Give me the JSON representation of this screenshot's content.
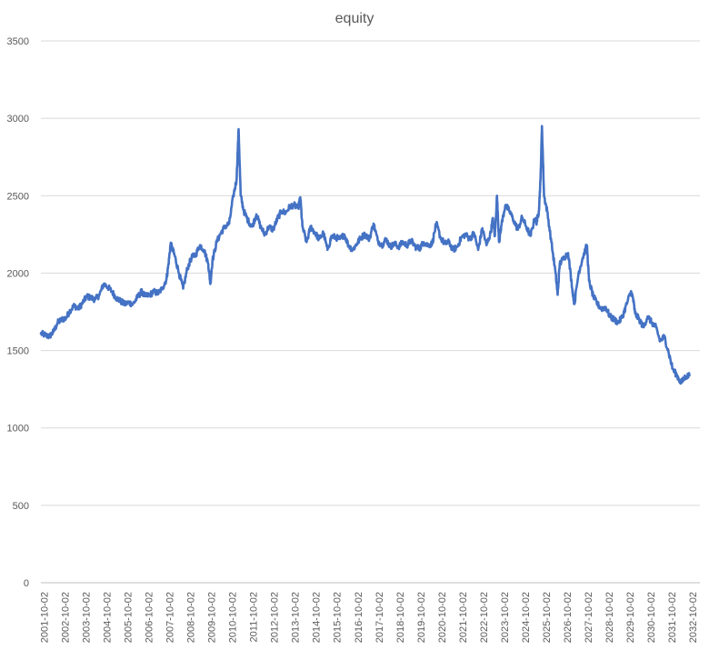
{
  "chart_data": {
    "type": "line",
    "title": "equity",
    "xlabel": "",
    "ylabel": "",
    "ylim": [
      0,
      3500
    ],
    "yticks": [
      0,
      500,
      1000,
      1500,
      2000,
      2500,
      3000,
      3500
    ],
    "grid": true,
    "legend": "none",
    "xlim": [
      2001.6,
      2033.1
    ],
    "xticks": [
      "2001-10-02",
      "2002-10-02",
      "2003-10-02",
      "2004-10-02",
      "2005-10-02",
      "2006-10-02",
      "2007-10-02",
      "2008-10-02",
      "2009-10-02",
      "2010-10-02",
      "2011-10-02",
      "2012-10-02",
      "2013-10-02",
      "2014-10-02",
      "2015-10-02",
      "2016-10-02",
      "2017-10-02",
      "2018-10-02",
      "2019-10-02",
      "2020-10-02",
      "2021-10-02",
      "2022-10-02",
      "2023-10-02",
      "2024-10-02",
      "2025-10-02",
      "2026-10-02",
      "2027-10-02",
      "2028-10-02",
      "2029-10-02",
      "2030-10-02",
      "2031-10-02",
      "2032-10-02"
    ],
    "series": [
      {
        "color": "#4472c4",
        "points": [
          [
            2001.6,
            1610
          ],
          [
            2001.8,
            1600
          ],
          [
            2002.0,
            1590
          ],
          [
            2002.2,
            1620
          ],
          [
            2002.4,
            1680
          ],
          [
            2002.6,
            1700
          ],
          [
            2002.8,
            1710
          ],
          [
            2003.0,
            1760
          ],
          [
            2003.2,
            1790
          ],
          [
            2003.4,
            1770
          ],
          [
            2003.6,
            1810
          ],
          [
            2003.8,
            1850
          ],
          [
            2004.0,
            1840
          ],
          [
            2004.2,
            1830
          ],
          [
            2004.4,
            1860
          ],
          [
            2004.6,
            1930
          ],
          [
            2004.8,
            1910
          ],
          [
            2005.0,
            1880
          ],
          [
            2005.2,
            1840
          ],
          [
            2005.4,
            1820
          ],
          [
            2005.6,
            1800
          ],
          [
            2005.8,
            1810
          ],
          [
            2006.0,
            1800
          ],
          [
            2006.2,
            1840
          ],
          [
            2006.4,
            1880
          ],
          [
            2006.6,
            1850
          ],
          [
            2006.8,
            1860
          ],
          [
            2007.0,
            1880
          ],
          [
            2007.2,
            1870
          ],
          [
            2007.4,
            1900
          ],
          [
            2007.6,
            1960
          ],
          [
            2007.7,
            2060
          ],
          [
            2007.8,
            2190
          ],
          [
            2007.9,
            2150
          ],
          [
            2008.0,
            2110
          ],
          [
            2008.2,
            2000
          ],
          [
            2008.4,
            1900
          ],
          [
            2008.6,
            2030
          ],
          [
            2008.8,
            2100
          ],
          [
            2009.0,
            2120
          ],
          [
            2009.2,
            2180
          ],
          [
            2009.4,
            2150
          ],
          [
            2009.6,
            2060
          ],
          [
            2009.7,
            1930
          ],
          [
            2009.8,
            2080
          ],
          [
            2010.0,
            2200
          ],
          [
            2010.2,
            2260
          ],
          [
            2010.4,
            2300
          ],
          [
            2010.6,
            2320
          ],
          [
            2010.8,
            2500
          ],
          [
            2010.95,
            2600
          ],
          [
            2011.05,
            2930
          ],
          [
            2011.15,
            2500
          ],
          [
            2011.3,
            2400
          ],
          [
            2011.5,
            2340
          ],
          [
            2011.7,
            2300
          ],
          [
            2011.9,
            2380
          ],
          [
            2012.1,
            2300
          ],
          [
            2012.3,
            2250
          ],
          [
            2012.5,
            2300
          ],
          [
            2012.7,
            2280
          ],
          [
            2012.9,
            2350
          ],
          [
            2013.1,
            2400
          ],
          [
            2013.3,
            2390
          ],
          [
            2013.5,
            2430
          ],
          [
            2013.7,
            2440
          ],
          [
            2013.9,
            2420
          ],
          [
            2014.0,
            2490
          ],
          [
            2014.1,
            2300
          ],
          [
            2014.3,
            2200
          ],
          [
            2014.5,
            2300
          ],
          [
            2014.7,
            2260
          ],
          [
            2014.9,
            2220
          ],
          [
            2015.1,
            2260
          ],
          [
            2015.3,
            2150
          ],
          [
            2015.5,
            2240
          ],
          [
            2015.7,
            2230
          ],
          [
            2015.9,
            2220
          ],
          [
            2016.1,
            2250
          ],
          [
            2016.3,
            2180
          ],
          [
            2016.5,
            2150
          ],
          [
            2016.7,
            2190
          ],
          [
            2016.9,
            2230
          ],
          [
            2017.1,
            2250
          ],
          [
            2017.3,
            2220
          ],
          [
            2017.5,
            2320
          ],
          [
            2017.7,
            2210
          ],
          [
            2017.9,
            2180
          ],
          [
            2018.1,
            2220
          ],
          [
            2018.3,
            2170
          ],
          [
            2018.5,
            2190
          ],
          [
            2018.7,
            2170
          ],
          [
            2018.9,
            2200
          ],
          [
            2019.1,
            2180
          ],
          [
            2019.3,
            2210
          ],
          [
            2019.5,
            2170
          ],
          [
            2019.7,
            2160
          ],
          [
            2019.9,
            2200
          ],
          [
            2020.1,
            2180
          ],
          [
            2020.3,
            2190
          ],
          [
            2020.5,
            2320
          ],
          [
            2020.7,
            2230
          ],
          [
            2020.9,
            2190
          ],
          [
            2021.1,
            2200
          ],
          [
            2021.3,
            2150
          ],
          [
            2021.5,
            2170
          ],
          [
            2021.7,
            2230
          ],
          [
            2021.9,
            2250
          ],
          [
            2022.1,
            2220
          ],
          [
            2022.3,
            2260
          ],
          [
            2022.5,
            2150
          ],
          [
            2022.7,
            2290
          ],
          [
            2022.9,
            2180
          ],
          [
            2023.1,
            2260
          ],
          [
            2023.2,
            2350
          ],
          [
            2023.3,
            2240
          ],
          [
            2023.4,
            2500
          ],
          [
            2023.5,
            2200
          ],
          [
            2023.6,
            2300
          ],
          [
            2023.8,
            2440
          ],
          [
            2024.0,
            2400
          ],
          [
            2024.2,
            2340
          ],
          [
            2024.4,
            2280
          ],
          [
            2024.6,
            2360
          ],
          [
            2024.8,
            2300
          ],
          [
            2025.0,
            2240
          ],
          [
            2025.2,
            2350
          ],
          [
            2025.3,
            2330
          ],
          [
            2025.4,
            2400
          ],
          [
            2025.48,
            2600
          ],
          [
            2025.55,
            2950
          ],
          [
            2025.65,
            2500
          ],
          [
            2025.8,
            2400
          ],
          [
            2026.0,
            2200
          ],
          [
            2026.2,
            2000
          ],
          [
            2026.3,
            1860
          ],
          [
            2026.4,
            2060
          ],
          [
            2026.6,
            2100
          ],
          [
            2026.8,
            2130
          ],
          [
            2027.0,
            1900
          ],
          [
            2027.1,
            1800
          ],
          [
            2027.3,
            2000
          ],
          [
            2027.5,
            2100
          ],
          [
            2027.7,
            2180
          ],
          [
            2027.8,
            1950
          ],
          [
            2028.0,
            1850
          ],
          [
            2028.2,
            1800
          ],
          [
            2028.4,
            1770
          ],
          [
            2028.6,
            1780
          ],
          [
            2028.8,
            1720
          ],
          [
            2029.0,
            1700
          ],
          [
            2029.2,
            1680
          ],
          [
            2029.4,
            1720
          ],
          [
            2029.6,
            1800
          ],
          [
            2029.8,
            1880
          ],
          [
            2029.9,
            1840
          ],
          [
            2030.0,
            1740
          ],
          [
            2030.2,
            1700
          ],
          [
            2030.4,
            1650
          ],
          [
            2030.6,
            1720
          ],
          [
            2030.8,
            1680
          ],
          [
            2031.0,
            1650
          ],
          [
            2031.2,
            1560
          ],
          [
            2031.4,
            1590
          ],
          [
            2031.6,
            1490
          ],
          [
            2031.8,
            1380
          ],
          [
            2032.0,
            1340
          ],
          [
            2032.2,
            1290
          ],
          [
            2032.4,
            1330
          ],
          [
            2032.6,
            1340
          ]
        ]
      }
    ]
  }
}
